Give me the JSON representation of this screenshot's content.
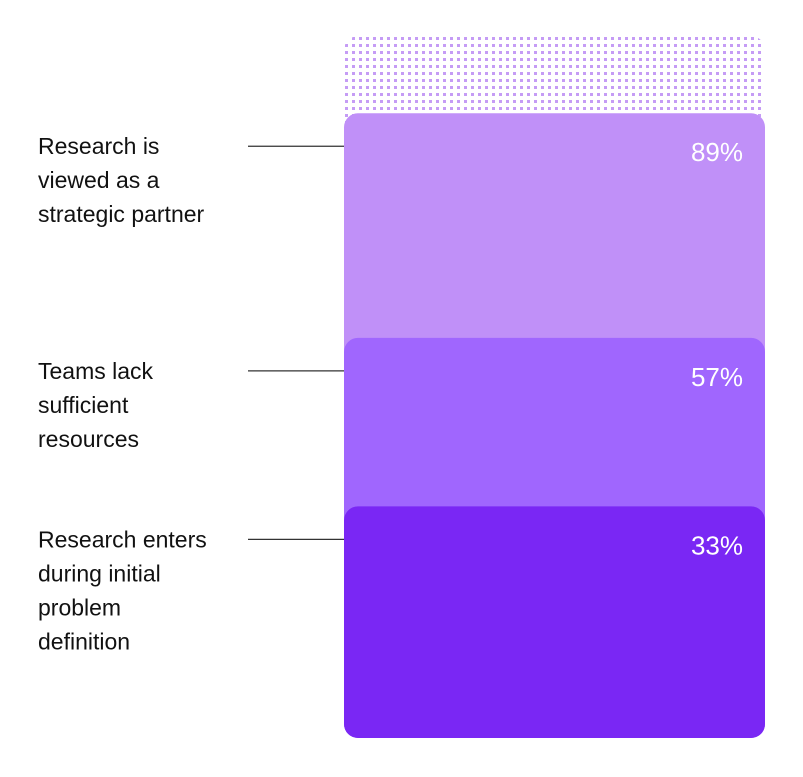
{
  "chart_data": {
    "type": "bar",
    "categories": [
      [
        "Research is",
        "viewed as a",
        "strategic partner"
      ],
      [
        "Teams lack",
        "sufficient",
        "resources"
      ],
      [
        "Research enters",
        "during initial",
        "problem",
        "definition"
      ]
    ],
    "values": [
      89,
      57,
      33
    ],
    "value_labels": [
      "89%",
      "57%",
      "33%"
    ],
    "colors": [
      "#c090f8",
      "#a066fe",
      "#7a27f4"
    ],
    "ylim": [
      0,
      100
    ]
  }
}
